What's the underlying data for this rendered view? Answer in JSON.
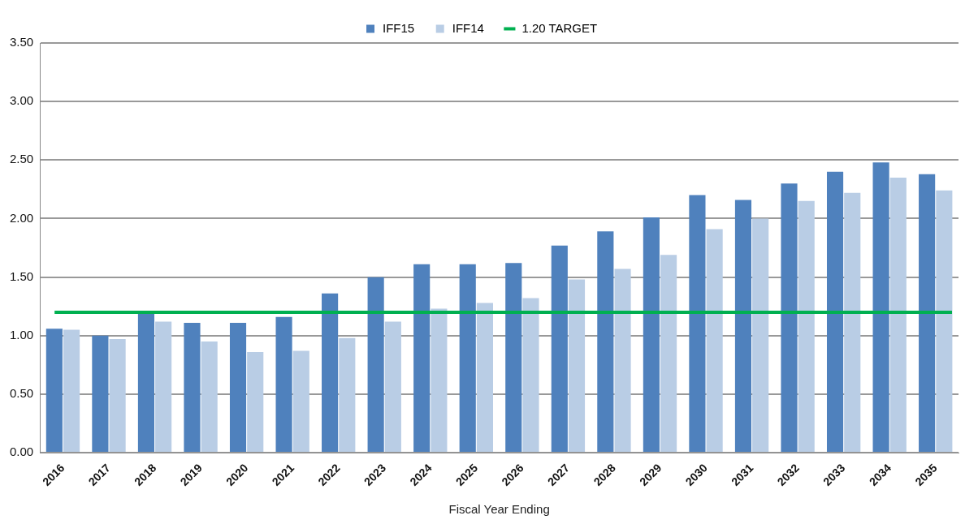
{
  "chart_data": {
    "type": "bar",
    "xlabel": "Fiscal Year Ending",
    "categories": [
      "2016",
      "2017",
      "2018",
      "2019",
      "2020",
      "2021",
      "2022",
      "2023",
      "2024",
      "2025",
      "2026",
      "2027",
      "2028",
      "2029",
      "2030",
      "2031",
      "2032",
      "2033",
      "2034",
      "2035"
    ],
    "series": [
      {
        "name": "IFF15",
        "color": "#4f81bd",
        "values": [
          1.06,
          1.0,
          1.2,
          1.11,
          1.11,
          1.16,
          1.36,
          1.5,
          1.61,
          1.61,
          1.62,
          1.77,
          1.89,
          2.01,
          2.2,
          2.16,
          2.3,
          2.4,
          2.48,
          2.38
        ]
      },
      {
        "name": "IFF14",
        "color": "#b9cde5",
        "values": [
          1.05,
          0.97,
          1.12,
          0.95,
          0.86,
          0.87,
          0.98,
          1.12,
          1.23,
          1.28,
          1.32,
          1.48,
          1.57,
          1.69,
          1.91,
          2.0,
          2.15,
          2.22,
          2.35,
          2.24
        ]
      }
    ],
    "ref_lines": [
      {
        "axis": "y",
        "value": 1.2,
        "label": "1.20 TARGET",
        "color": "#00b050"
      }
    ],
    "ylim": [
      0,
      3.5
    ],
    "yticks": [
      {
        "value": 0,
        "label": "0.00"
      },
      {
        "value": 0.5,
        "label": "0.50"
      },
      {
        "value": 1,
        "label": "1.00"
      },
      {
        "value": 1.5,
        "label": "1.50"
      },
      {
        "value": 2,
        "label": "2.00"
      },
      {
        "value": 2.5,
        "label": "2.50"
      },
      {
        "value": 3,
        "label": "3.00"
      },
      {
        "value": 3.5,
        "label": "3.50"
      }
    ],
    "grid": "y",
    "legend": "top"
  }
}
